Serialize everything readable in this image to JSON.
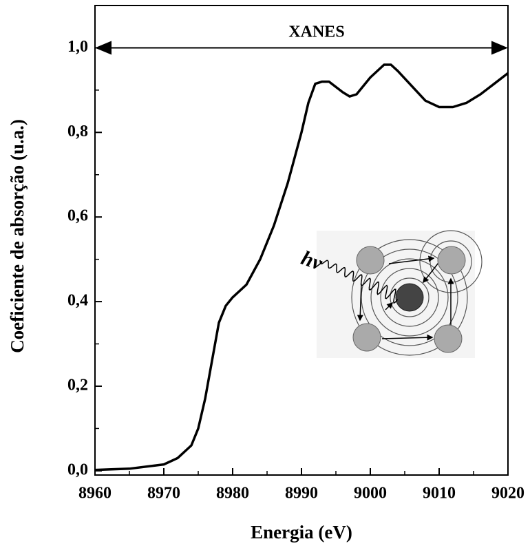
{
  "chart_data": {
    "type": "line",
    "x_label": "Energia (eV)",
    "y_label": "Coeficiente de absorção (u.a.)",
    "annotations": [
      "XANES",
      "hν"
    ],
    "x": [
      8960,
      8965,
      8970,
      8972,
      8974,
      8975,
      8976,
      8977,
      8978,
      8979,
      8980,
      8982,
      8984,
      8986,
      8988,
      8990,
      8991,
      8992,
      8993,
      8994,
      8996,
      8997,
      8998,
      9000,
      9002,
      9003,
      9004,
      9006,
      9008,
      9010,
      9012,
      9014,
      9016,
      9018,
      9020
    ],
    "series": [
      {
        "color": "#000000",
        "values": [
          0.002,
          0.005,
          0.015,
          0.03,
          0.06,
          0.1,
          0.17,
          0.26,
          0.35,
          0.39,
          0.41,
          0.44,
          0.5,
          0.58,
          0.68,
          0.8,
          0.87,
          0.915,
          0.92,
          0.92,
          0.895,
          0.885,
          0.89,
          0.93,
          0.96,
          0.96,
          0.945,
          0.91,
          0.875,
          0.86,
          0.86,
          0.87,
          0.89,
          0.915,
          0.94
        ]
      }
    ],
    "xlim": [
      8960,
      9020
    ],
    "xticks": [
      8960,
      8970,
      8980,
      8990,
      9000,
      9010,
      9020
    ],
    "ylim": [
      -0.01,
      1.1
    ],
    "yticks": [
      {
        "value": 0,
        "label": "0,0"
      },
      {
        "value": 0.2,
        "label": "0,2"
      },
      {
        "value": 0.4,
        "label": "0,4"
      },
      {
        "value": 0.6,
        "label": "0,6"
      },
      {
        "value": 0.8,
        "label": "0,8"
      },
      {
        "value": 1.0,
        "label": "1,0"
      }
    ]
  }
}
